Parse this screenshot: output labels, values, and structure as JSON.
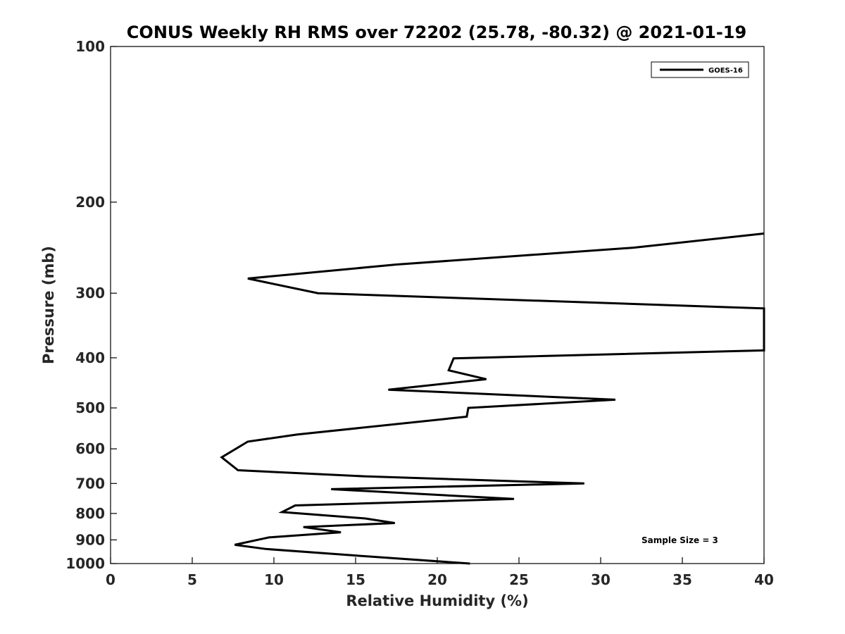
{
  "chart_data": {
    "type": "line",
    "title": "CONUS Weekly RH RMS over 72202 (25.78, -80.32) @ 2021-01-19",
    "xlabel": "Relative Humidity (%)",
    "ylabel": "Pressure (mb)",
    "xlim": [
      0,
      40
    ],
    "ylim": [
      100,
      1000
    ],
    "yscale": "log",
    "y_reversed": true,
    "xticks": [
      0,
      5,
      10,
      15,
      20,
      25,
      30,
      35,
      40
    ],
    "yticks": [
      100,
      200,
      300,
      400,
      500,
      600,
      700,
      800,
      900,
      1000
    ],
    "grid": false,
    "legend_position": "top-right",
    "series": [
      {
        "name": "GOES-16",
        "color": "#000000",
        "x": [
          40,
          32,
          17.5,
          8.4,
          12.7,
          40,
          40,
          21,
          20.7,
          23,
          17,
          30.9,
          21.9,
          21.8,
          11.4,
          8.4,
          6.8,
          7.8,
          15.5,
          29,
          13.5,
          24.7,
          11.3,
          10.5,
          15.6,
          17.4,
          11.8,
          14.1,
          9.7,
          7.6,
          9.5,
          16,
          22
        ],
        "y": [
          230,
          245,
          264,
          281,
          300,
          321,
          387,
          401,
          423,
          440,
          461,
          482,
          500,
          520,
          563,
          581,
          623,
          660,
          678,
          700,
          718,
          750,
          772,
          795,
          818,
          835,
          850,
          870,
          890,
          920,
          937,
          970,
          1000
        ]
      }
    ],
    "annotations": [
      "Sample Size = 3"
    ]
  }
}
